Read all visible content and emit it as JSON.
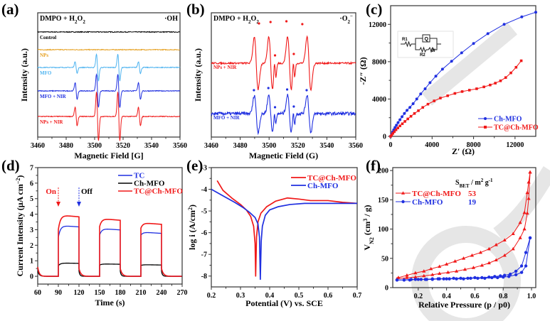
{
  "figure": {
    "watermark_color": "#e6e6e6"
  },
  "chart_data": [
    {
      "panel": "(a)",
      "type": "line",
      "title": "",
      "annotation_left": "DMPO + H2O2",
      "annotation_right": "·OH",
      "xlabel": "Magnetic Field [G]",
      "ylabel": "Intensity (a.u.)",
      "xlim": [
        3460,
        3560
      ],
      "xticks": [
        3460,
        3480,
        3500,
        3520,
        3540,
        3560
      ],
      "yticks_shown": false,
      "peak_positions": [
        3487,
        3502,
        3517,
        3531.5
      ],
      "series": [
        {
          "name": "Control",
          "color": "#000000",
          "offset": 0.0,
          "amplitudes": [
            0,
            0,
            0,
            0
          ]
        },
        {
          "name": "NPs",
          "color": "#e6a020",
          "offset": 1.0,
          "amplitudes": [
            0,
            0,
            0,
            0
          ]
        },
        {
          "name": "MFO",
          "color": "#4db3f0",
          "offset": 2.0,
          "amplitudes": [
            0.35,
            0.8,
            0.8,
            0.35
          ]
        },
        {
          "name": "MFO + NIR",
          "color": "#1f2fe0",
          "offset": 3.1,
          "amplitudes": [
            0.5,
            1.0,
            1.0,
            0.5
          ]
        },
        {
          "name": "NPs + NIR",
          "color": "#f01818",
          "offset": 4.3,
          "amplitudes": [
            0.55,
            1.45,
            1.45,
            0.55
          ]
        }
      ]
    },
    {
      "panel": "(b)",
      "type": "line",
      "annotation_left": "DMPO + H2O2",
      "annotation_right": "·O2−",
      "xlabel": "Magnetic Field (G)",
      "ylabel": "Intensity (a.u.)",
      "xlim": [
        3460,
        3560
      ],
      "xticks": [
        3460,
        3480,
        3500,
        3520,
        3540,
        3560
      ],
      "yticks_shown": false,
      "major_peaks": [
        3489.5,
        3499.5,
        3512.5,
        3526
      ],
      "minor_peaks": [
        3503.5,
        3516.5
      ],
      "series": [
        {
          "name": "NPs + NIR",
          "color": "#f01818",
          "offset": 0,
          "amplitude": 1.0,
          "noise": 0.03
        },
        {
          "name": "MFO + NIR",
          "color": "#1f2fe0",
          "offset": 1,
          "amplitude": 0.55,
          "noise": 0.08
        }
      ]
    },
    {
      "panel": "(c)",
      "type": "scatter",
      "xlabel": "Z′ (Ω)",
      "ylabel": "-Z″ (Ω)",
      "xlim": [
        0,
        14000
      ],
      "ylim": [
        0,
        14000
      ],
      "xticks": [
        0,
        4000,
        8000,
        12000
      ],
      "yticks": [
        0,
        4000,
        8000,
        12000
      ],
      "inset": {
        "labels": [
          "R1",
          "Q",
          "R2",
          "W"
        ],
        "description": "equivalent circuit"
      },
      "legend": "bottom-right",
      "series": [
        {
          "name": "Ch-MFO",
          "color": "#1f2fe0",
          "marker": "circle",
          "x": [
            0,
            100,
            200,
            300,
            420,
            560,
            720,
            900,
            1100,
            1330,
            1580,
            1860,
            2170,
            2520,
            2900,
            3330,
            3800,
            4360,
            5000,
            5880,
            6850,
            8000,
            9380,
            10950,
            12650,
            14000
          ],
          "y": [
            0,
            250,
            480,
            700,
            950,
            1200,
            1470,
            1780,
            2100,
            2450,
            2790,
            3100,
            3500,
            4000,
            4550,
            5100,
            5750,
            6450,
            7200,
            8050,
            8950,
            9950,
            11000,
            12000,
            12800,
            13300
          ]
        },
        {
          "name": "TC@Ch-MFO",
          "color": "#f01818",
          "marker": "square",
          "x": [
            0,
            100,
            220,
            360,
            520,
            700,
            900,
            1130,
            1380,
            1660,
            1960,
            2300,
            2680,
            3100,
            3600,
            4200,
            4800,
            5500,
            6200,
            6900,
            7600,
            8300,
            9000,
            9600,
            10100,
            10600,
            11100,
            11600,
            12100,
            12600
          ],
          "y": [
            0,
            150,
            320,
            500,
            700,
            900,
            1120,
            1350,
            1600,
            1870,
            2150,
            2450,
            2750,
            3100,
            3450,
            3800,
            4100,
            4350,
            4600,
            4800,
            4950,
            5100,
            5300,
            5500,
            5700,
            5950,
            6300,
            6800,
            7400,
            8100
          ]
        }
      ]
    },
    {
      "panel": "(d)",
      "type": "line",
      "xlabel": "Time (s)",
      "ylabel": "Current Intensity (μA cm−2)",
      "xlim": [
        60,
        270
      ],
      "ylim": [
        -0.5,
        7
      ],
      "xticks": [
        60,
        90,
        120,
        150,
        180,
        210,
        240,
        270
      ],
      "yticks": [
        0,
        1,
        2,
        3,
        4,
        5,
        6,
        7
      ],
      "legend": "top-right",
      "annotations": [
        {
          "text": "On",
          "x": 90,
          "color": "#f01818"
        },
        {
          "text": "Off",
          "x": 120,
          "color": "#1f2fe0"
        }
      ],
      "on_intervals": [
        [
          90,
          120
        ],
        [
          150,
          180
        ],
        [
          210,
          240
        ]
      ],
      "series": [
        {
          "name": "TC",
          "color": "#1f2fe0",
          "plateaus": [
            3.28,
            3.08,
            2.85
          ],
          "rise_start": [
            2.5,
            2.65,
            2.65
          ]
        },
        {
          "name": "Ch-MFO",
          "color": "#000000",
          "plateaus": [
            0.86,
            0.8,
            0.75
          ],
          "rise_start": [
            0.68,
            0.72,
            0.7
          ]
        },
        {
          "name": "TC@Ch-MFO",
          "color": "#f01818",
          "plateaus": [
            3.95,
            3.72,
            3.45
          ],
          "rise_start": [
            3.0,
            3.2,
            3.1
          ]
        }
      ]
    },
    {
      "panel": "(e)",
      "type": "line",
      "xlabel": "Potential (V) vs. SCE",
      "ylabel": "log i (A/cm2)",
      "xlim": [
        0.2,
        0.7
      ],
      "ylim": [
        -8.5,
        -3
      ],
      "xticks": [
        0.2,
        0.3,
        0.4,
        0.5,
        0.6,
        0.7
      ],
      "yticks": [
        -3,
        -4,
        -5,
        -6,
        -7,
        -8
      ],
      "legend": "top-right",
      "series": [
        {
          "name": "TC@Ch-MFO",
          "color": "#f01818",
          "x": [
            0.22,
            0.24,
            0.27,
            0.3,
            0.32,
            0.335,
            0.345,
            0.35,
            0.352,
            0.355,
            0.36,
            0.37,
            0.39,
            0.42,
            0.46,
            0.5,
            0.54,
            0.6,
            0.65,
            0.7
          ],
          "y": [
            -3.6,
            -4.05,
            -4.4,
            -4.7,
            -4.95,
            -5.25,
            -5.7,
            -6.5,
            -8.0,
            -6.2,
            -5.5,
            -5.1,
            -4.8,
            -4.55,
            -4.4,
            -4.45,
            -4.52,
            -4.52,
            -4.6,
            -4.65
          ]
        },
        {
          "name": "Ch-MFO",
          "color": "#1f2fe0",
          "x": [
            0.2,
            0.24,
            0.28,
            0.31,
            0.33,
            0.35,
            0.36,
            0.365,
            0.368,
            0.371,
            0.375,
            0.385,
            0.4,
            0.43,
            0.47,
            0.52,
            0.6,
            0.7
          ],
          "y": [
            -4.0,
            -4.3,
            -4.6,
            -4.85,
            -5.05,
            -5.3,
            -5.6,
            -6.2,
            -8.15,
            -6.4,
            -5.7,
            -5.2,
            -4.95,
            -4.8,
            -4.7,
            -4.65,
            -4.65,
            -4.65
          ]
        }
      ]
    },
    {
      "panel": "(f)",
      "type": "line",
      "xlabel": "Relative Pressure (p / p0)",
      "ylabel": "VN2 (cm3 / g)",
      "xlim": [
        0.02,
        1.03
      ],
      "ylim": [
        0,
        205
      ],
      "xticks": [
        0.2,
        0.4,
        0.6,
        0.8,
        1.0
      ],
      "yticks": [
        0,
        50,
        100,
        150,
        200
      ],
      "legend": "top-left",
      "legend_header": "SBET / m2 g-1",
      "series": [
        {
          "name": "TC@Ch-MFO",
          "color": "#f01818",
          "marker": "triangle",
          "sbet": "53",
          "adsorption_x": [
            0.05,
            0.12,
            0.18,
            0.24,
            0.3,
            0.35,
            0.41,
            0.47,
            0.53,
            0.59,
            0.65,
            0.7,
            0.75,
            0.81,
            0.87,
            0.92,
            0.95,
            0.97,
            0.98,
            0.99
          ],
          "adsorption_y": [
            15,
            17,
            18,
            20,
            22,
            24,
            26,
            28,
            31,
            34,
            38,
            42,
            47,
            55,
            66,
            85,
            100,
            127,
            152,
            197
          ],
          "desorption_x": [
            0.99,
            0.98,
            0.97,
            0.95,
            0.92,
            0.87,
            0.81,
            0.75,
            0.7,
            0.64,
            0.58,
            0.52,
            0.46,
            0.4,
            0.35,
            0.29,
            0.24,
            0.18,
            0.12,
            0.06
          ],
          "desorption_y": [
            197,
            180,
            162,
            128,
            111,
            92,
            81,
            73,
            66,
            60,
            55,
            50,
            45,
            40,
            36,
            32,
            28,
            25,
            21,
            17
          ]
        },
        {
          "name": "Ch-MFO",
          "color": "#1f2fe0",
          "marker": "circle",
          "sbet": "19",
          "adsorption_x": [
            0.05,
            0.1,
            0.14,
            0.18,
            0.22,
            0.26,
            0.3,
            0.34,
            0.38,
            0.42,
            0.47,
            0.52,
            0.57,
            0.62,
            0.67,
            0.72,
            0.76,
            0.8,
            0.84,
            0.89,
            0.93,
            0.96,
            0.99
          ],
          "adsorption_y": [
            13,
            13,
            13,
            14,
            14,
            14,
            14,
            15,
            15,
            15,
            15,
            15,
            16,
            16,
            16,
            17,
            17,
            18,
            19,
            22,
            26,
            37,
            85
          ],
          "desorption_x": [
            0.99,
            0.96,
            0.93,
            0.89,
            0.85,
            0.81,
            0.78,
            0.74,
            0.7,
            0.65,
            0.6,
            0.55,
            0.5,
            0.45,
            0.4,
            0.35,
            0.3,
            0.25,
            0.2,
            0.15,
            0.1,
            0.05
          ],
          "desorption_y": [
            85,
            60,
            37,
            28,
            23,
            21,
            20,
            19,
            18,
            17,
            17,
            16,
            16,
            16,
            15,
            15,
            15,
            14,
            14,
            14,
            13,
            13
          ]
        }
      ]
    }
  ]
}
